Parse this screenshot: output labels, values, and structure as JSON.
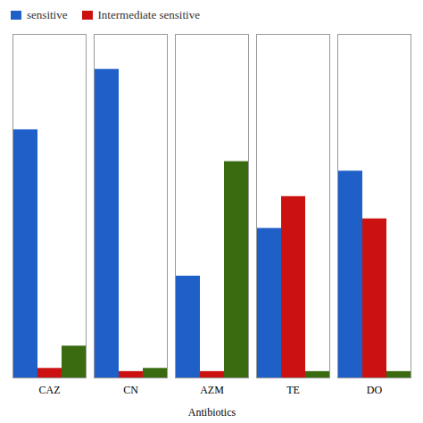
{
  "chart_data": {
    "type": "bar",
    "xlabel": "Antibiotics",
    "categories": [
      "CAZ",
      "CN",
      "AZM",
      "TE",
      "DO"
    ],
    "series": [
      {
        "name": "sensitive",
        "color": "#1f5fc8",
        "values": [
          78,
          97,
          32,
          47,
          65
        ]
      },
      {
        "name": "Intermediate sensitive",
        "color": "#cc1111",
        "values": [
          3,
          2,
          2,
          57,
          50
        ]
      },
      {
        "color": "#3a6b10",
        "values": [
          10,
          3,
          68,
          2,
          2
        ]
      }
    ],
    "ylim": [
      0,
      108
    ],
    "yticks": [],
    "grid": false,
    "tick_labels": "x",
    "legend": "upper left"
  }
}
